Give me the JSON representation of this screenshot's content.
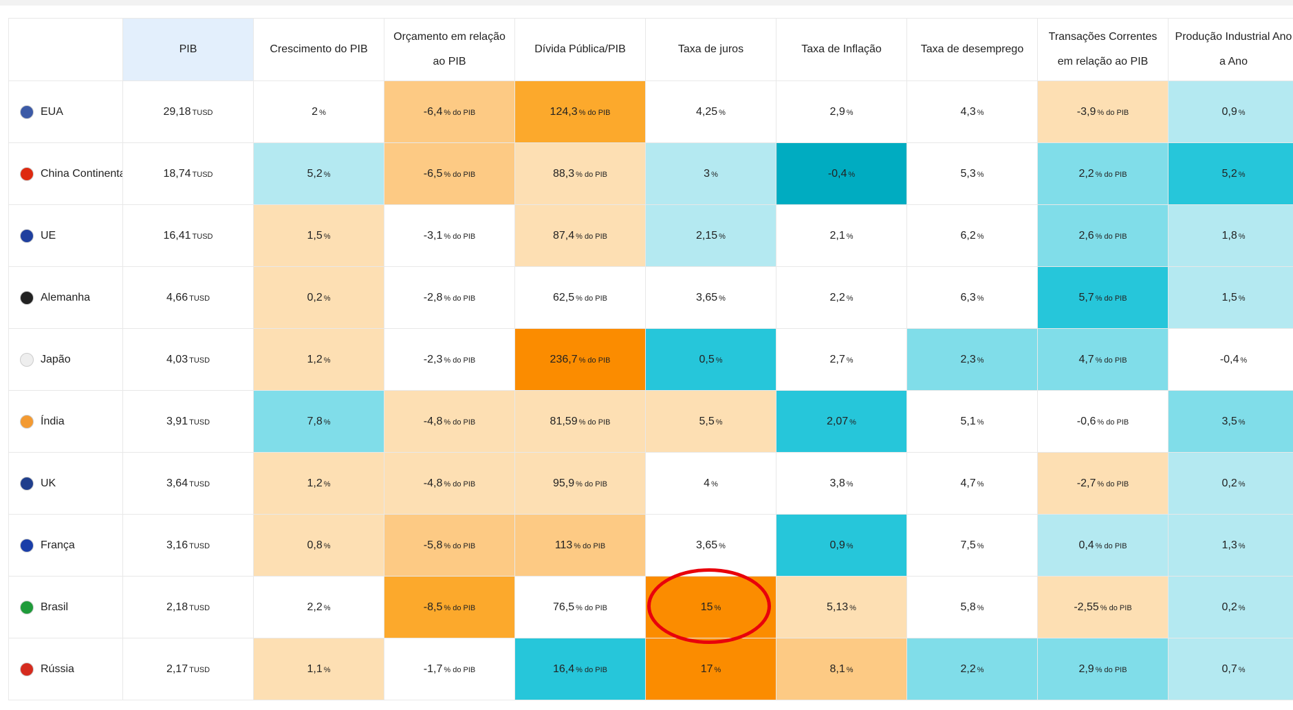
{
  "table": {
    "headers": [
      "",
      "PIB",
      "Crescimento do PIB",
      "Orçamento em relação ao PIB",
      "Dívida Pública/PIB",
      "Taxa de juros",
      "Taxa de Inflação",
      "Taxa de desemprego",
      "Transações Correntes em relação ao PIB",
      "Produção Industrial Ano a Ano"
    ],
    "header_colors": [
      "#ffffff",
      "#e3effc",
      "#ffffff",
      "#ffffff",
      "#ffffff",
      "#ffffff",
      "#ffffff",
      "#ffffff",
      "#ffffff",
      "#ffffff"
    ],
    "rows": [
      {
        "country": "EUA",
        "cells": [
          {
            "value": "29,18",
            "unit": "TUSD",
            "color": "#ffffff"
          },
          {
            "value": "2",
            "unit": "%",
            "color": "#ffffff"
          },
          {
            "value": "-6,4",
            "unit": "% do PIB",
            "color": "#fdca84"
          },
          {
            "value": "124,3",
            "unit": "% do PIB",
            "color": "#fca92c"
          },
          {
            "value": "4,25",
            "unit": "%",
            "color": "#ffffff"
          },
          {
            "value": "2,9",
            "unit": "%",
            "color": "#ffffff"
          },
          {
            "value": "4,3",
            "unit": "%",
            "color": "#ffffff"
          },
          {
            "value": "-3,9",
            "unit": "% do PIB",
            "color": "#fddfb3"
          },
          {
            "value": "0,9",
            "unit": "%",
            "color": "#b4e9f1"
          }
        ]
      },
      {
        "country": "China Continental",
        "cells": [
          {
            "value": "18,74",
            "unit": "TUSD",
            "color": "#ffffff"
          },
          {
            "value": "5,2",
            "unit": "%",
            "color": "#b4e9f1"
          },
          {
            "value": "-6,5",
            "unit": "% do PIB",
            "color": "#fdca84"
          },
          {
            "value": "88,3",
            "unit": "% do PIB",
            "color": "#fddfb3"
          },
          {
            "value": "3",
            "unit": "%",
            "color": "#b4e9f1"
          },
          {
            "value": "-0,4",
            "unit": "%",
            "color": "#00acc1"
          },
          {
            "value": "5,3",
            "unit": "%",
            "color": "#ffffff"
          },
          {
            "value": "2,2",
            "unit": "% do PIB",
            "color": "#80dde9"
          },
          {
            "value": "5,2",
            "unit": "%",
            "color": "#26c6da"
          }
        ]
      },
      {
        "country": "UE",
        "cells": [
          {
            "value": "16,41",
            "unit": "TUSD",
            "color": "#ffffff"
          },
          {
            "value": "1,5",
            "unit": "%",
            "color": "#fddfb3"
          },
          {
            "value": "-3,1",
            "unit": "% do PIB",
            "color": "#ffffff"
          },
          {
            "value": "87,4",
            "unit": "% do PIB",
            "color": "#fddfb3"
          },
          {
            "value": "2,15",
            "unit": "%",
            "color": "#b4e9f1"
          },
          {
            "value": "2,1",
            "unit": "%",
            "color": "#ffffff"
          },
          {
            "value": "6,2",
            "unit": "%",
            "color": "#ffffff"
          },
          {
            "value": "2,6",
            "unit": "% do PIB",
            "color": "#80dde9"
          },
          {
            "value": "1,8",
            "unit": "%",
            "color": "#b4e9f1"
          }
        ]
      },
      {
        "country": "Alemanha",
        "cells": [
          {
            "value": "4,66",
            "unit": "TUSD",
            "color": "#ffffff"
          },
          {
            "value": "0,2",
            "unit": "%",
            "color": "#fddfb3"
          },
          {
            "value": "-2,8",
            "unit": "% do PIB",
            "color": "#ffffff"
          },
          {
            "value": "62,5",
            "unit": "% do PIB",
            "color": "#ffffff"
          },
          {
            "value": "3,65",
            "unit": "%",
            "color": "#ffffff"
          },
          {
            "value": "2,2",
            "unit": "%",
            "color": "#ffffff"
          },
          {
            "value": "6,3",
            "unit": "%",
            "color": "#ffffff"
          },
          {
            "value": "5,7",
            "unit": "% do PIB",
            "color": "#26c6da"
          },
          {
            "value": "1,5",
            "unit": "%",
            "color": "#b4e9f1"
          }
        ]
      },
      {
        "country": "Japão",
        "cells": [
          {
            "value": "4,03",
            "unit": "TUSD",
            "color": "#ffffff"
          },
          {
            "value": "1,2",
            "unit": "%",
            "color": "#fddfb3"
          },
          {
            "value": "-2,3",
            "unit": "% do PIB",
            "color": "#ffffff"
          },
          {
            "value": "236,7",
            "unit": "% do PIB",
            "color": "#fb8c00"
          },
          {
            "value": "0,5",
            "unit": "%",
            "color": "#26c6da"
          },
          {
            "value": "2,7",
            "unit": "%",
            "color": "#ffffff"
          },
          {
            "value": "2,3",
            "unit": "%",
            "color": "#80dde9"
          },
          {
            "value": "4,7",
            "unit": "% do PIB",
            "color": "#80dde9"
          },
          {
            "value": "-0,4",
            "unit": "%",
            "color": "#ffffff"
          }
        ]
      },
      {
        "country": "Índia",
        "cells": [
          {
            "value": "3,91",
            "unit": "TUSD",
            "color": "#ffffff"
          },
          {
            "value": "7,8",
            "unit": "%",
            "color": "#80dde9"
          },
          {
            "value": "-4,8",
            "unit": "% do PIB",
            "color": "#fddfb3"
          },
          {
            "value": "81,59",
            "unit": "% do PIB",
            "color": "#fddfb3"
          },
          {
            "value": "5,5",
            "unit": "%",
            "color": "#fddfb3"
          },
          {
            "value": "2,07",
            "unit": "%",
            "color": "#26c6da"
          },
          {
            "value": "5,1",
            "unit": "%",
            "color": "#ffffff"
          },
          {
            "value": "-0,6",
            "unit": "% do PIB",
            "color": "#ffffff"
          },
          {
            "value": "3,5",
            "unit": "%",
            "color": "#80dde9"
          }
        ]
      },
      {
        "country": "UK",
        "cells": [
          {
            "value": "3,64",
            "unit": "TUSD",
            "color": "#ffffff"
          },
          {
            "value": "1,2",
            "unit": "%",
            "color": "#fddfb3"
          },
          {
            "value": "-4,8",
            "unit": "% do PIB",
            "color": "#fddfb3"
          },
          {
            "value": "95,9",
            "unit": "% do PIB",
            "color": "#fddfb3"
          },
          {
            "value": "4",
            "unit": "%",
            "color": "#ffffff"
          },
          {
            "value": "3,8",
            "unit": "%",
            "color": "#ffffff"
          },
          {
            "value": "4,7",
            "unit": "%",
            "color": "#ffffff"
          },
          {
            "value": "-2,7",
            "unit": "% do PIB",
            "color": "#fddfb3"
          },
          {
            "value": "0,2",
            "unit": "%",
            "color": "#b4e9f1"
          }
        ]
      },
      {
        "country": "França",
        "cells": [
          {
            "value": "3,16",
            "unit": "TUSD",
            "color": "#ffffff"
          },
          {
            "value": "0,8",
            "unit": "%",
            "color": "#fddfb3"
          },
          {
            "value": "-5,8",
            "unit": "% do PIB",
            "color": "#fdca84"
          },
          {
            "value": "113",
            "unit": "% do PIB",
            "color": "#fdca84"
          },
          {
            "value": "3,65",
            "unit": "%",
            "color": "#ffffff"
          },
          {
            "value": "0,9",
            "unit": "%",
            "color": "#26c6da"
          },
          {
            "value": "7,5",
            "unit": "%",
            "color": "#ffffff"
          },
          {
            "value": "0,4",
            "unit": "% do PIB",
            "color": "#b4e9f1"
          },
          {
            "value": "1,3",
            "unit": "%",
            "color": "#b4e9f1"
          }
        ]
      },
      {
        "country": "Brasil",
        "cells": [
          {
            "value": "2,18",
            "unit": "TUSD",
            "color": "#ffffff"
          },
          {
            "value": "2,2",
            "unit": "%",
            "color": "#ffffff"
          },
          {
            "value": "-8,5",
            "unit": "% do PIB",
            "color": "#fca92c"
          },
          {
            "value": "76,5",
            "unit": "% do PIB",
            "color": "#ffffff"
          },
          {
            "value": "15",
            "unit": "%",
            "color": "#fb8c00"
          },
          {
            "value": "5,13",
            "unit": "%",
            "color": "#fddfb3"
          },
          {
            "value": "5,8",
            "unit": "%",
            "color": "#ffffff"
          },
          {
            "value": "-2,55",
            "unit": "% do PIB",
            "color": "#fddfb3"
          },
          {
            "value": "0,2",
            "unit": "%",
            "color": "#b4e9f1"
          }
        ]
      },
      {
        "country": "Rússia",
        "cells": [
          {
            "value": "2,17",
            "unit": "TUSD",
            "color": "#ffffff"
          },
          {
            "value": "1,1",
            "unit": "%",
            "color": "#fddfb3"
          },
          {
            "value": "-1,7",
            "unit": "% do PIB",
            "color": "#ffffff"
          },
          {
            "value": "16,4",
            "unit": "% do PIB",
            "color": "#26c6da"
          },
          {
            "value": "17",
            "unit": "%",
            "color": "#fb8c00"
          },
          {
            "value": "8,1",
            "unit": "%",
            "color": "#fdca84"
          },
          {
            "value": "2,2",
            "unit": "%",
            "color": "#80dde9"
          },
          {
            "value": "2,9",
            "unit": "% do PIB",
            "color": "#80dde9"
          },
          {
            "value": "0,7",
            "unit": "%",
            "color": "#b4e9f1"
          }
        ]
      }
    ]
  }
}
